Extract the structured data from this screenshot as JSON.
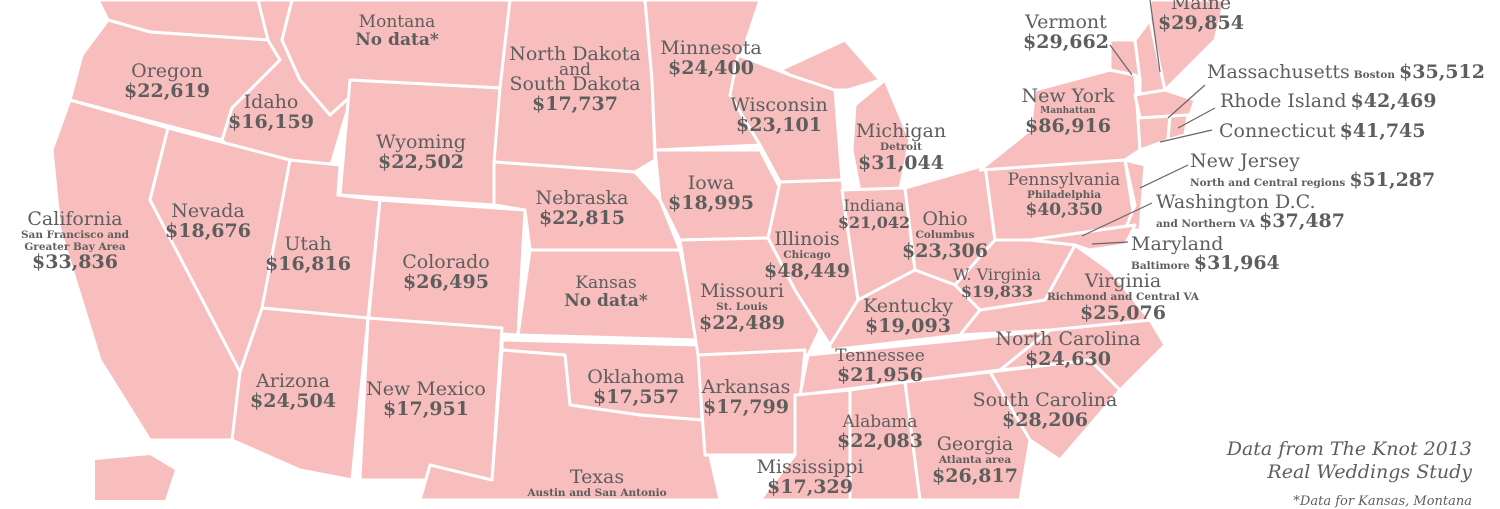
{
  "states": {
    "oregon": {
      "name": "Oregon",
      "value": "$22,619"
    },
    "idaho": {
      "name": "Idaho",
      "value": "$16,159"
    },
    "montana": {
      "name": "Montana",
      "value": "No data*"
    },
    "wyoming": {
      "name": "Wyoming",
      "value": "$22,502"
    },
    "north_south_dakota": {
      "name": "North Dakota",
      "and": "and",
      "name2": "South Dakota",
      "value": "$17,737"
    },
    "minnesota": {
      "name": "Minnesota",
      "value": "$24,400"
    },
    "wisconsin": {
      "name": "Wisconsin",
      "value": "$23,101"
    },
    "michigan": {
      "name": "Michigan",
      "region": "Detroit",
      "value": "$31,044"
    },
    "california": {
      "name": "California",
      "region": "San Francisco and",
      "region2": "Greater Bay Area",
      "value": "$33,836"
    },
    "nevada": {
      "name": "Nevada",
      "value": "$18,676"
    },
    "utah": {
      "name": "Utah",
      "value": "$16,816"
    },
    "colorado": {
      "name": "Colorado",
      "value": "$26,495"
    },
    "nebraska": {
      "name": "Nebraska",
      "value": "$22,815"
    },
    "iowa": {
      "name": "Iowa",
      "value": "$18,995"
    },
    "kansas": {
      "name": "Kansas",
      "value": "No data*"
    },
    "illinois": {
      "name": "Illinois",
      "region": "Chicago",
      "value": "$48,449"
    },
    "indiana": {
      "name": "Indiana",
      "value": "$21,042"
    },
    "ohio": {
      "name": "Ohio",
      "region": "Columbus",
      "value": "$23,306"
    },
    "missouri": {
      "name": "Missouri",
      "region": "St. Louis",
      "value": "$22,489"
    },
    "kentucky": {
      "name": "Kentucky",
      "value": "$19,093"
    },
    "west_virginia": {
      "name": "W. Virginia",
      "value": "$19,833"
    },
    "virginia": {
      "name": "Virginia",
      "region": "Richmond and Central VA",
      "value": "$25,076"
    },
    "arizona": {
      "name": "Arizona",
      "value": "$24,504"
    },
    "new_mexico": {
      "name": "New Mexico",
      "value": "$17,951"
    },
    "oklahoma": {
      "name": "Oklahoma",
      "value": "$17,557"
    },
    "arkansas": {
      "name": "Arkansas",
      "value": "$17,799"
    },
    "tennessee": {
      "name": "Tennessee",
      "value": "$21,956"
    },
    "north_carolina": {
      "name": "North Carolina",
      "value": "$24,630"
    },
    "south_carolina": {
      "name": "South Carolina",
      "value": "$28,206"
    },
    "alabama": {
      "name": "Alabama",
      "value": "$22,083"
    },
    "georgia": {
      "name": "Georgia",
      "region": "Atlanta area",
      "value": "$26,817"
    },
    "mississippi": {
      "name": "Mississippi",
      "value": "$17,329"
    },
    "texas": {
      "name": "Texas",
      "region": "Austin and San Antonio"
    },
    "pennsylvania": {
      "name": "Pennsylvania",
      "region": "Philadelphia",
      "value": "$40,350"
    },
    "new_york": {
      "name": "New York",
      "region": "Manhattan",
      "value": "$86,916"
    },
    "vermont": {
      "name": "Vermont",
      "value": "$29,662"
    },
    "maine": {
      "name": "Maine",
      "value": "$29,854"
    },
    "massachusetts": {
      "name": "Massachusetts",
      "region": "Boston",
      "value": "$35,512"
    },
    "rhode_island": {
      "name": "Rhode Island",
      "value": "$42,469"
    },
    "connecticut": {
      "name": "Connecticut",
      "value": "$41,745"
    },
    "new_jersey": {
      "name": "New Jersey",
      "region": "North and Central regions",
      "value": "$51,287"
    },
    "washington_dc": {
      "name": "Washington D.C.",
      "region": "and Northern VA",
      "value": "$37,487"
    },
    "maryland": {
      "name": "Maryland",
      "region": "Baltimore",
      "value": "$31,964"
    }
  },
  "source_note": {
    "line1": "Data from The Knot 2013",
    "line2": "Real Weddings Study",
    "footnote": "*Data for Kansas, Montana"
  },
  "colors": {
    "state_fill": "#f8bdbd",
    "border": "#ffffff",
    "text": "#5e5e5e"
  }
}
